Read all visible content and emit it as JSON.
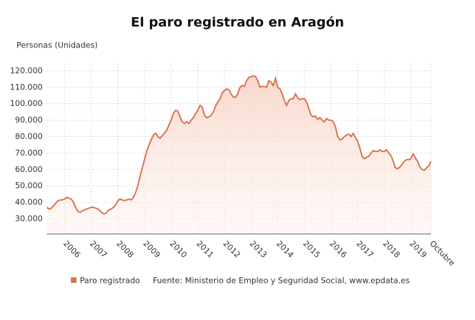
{
  "chart_data": {
    "type": "line",
    "title": "El paro registrado en Aragón",
    "y_label": "Personas (Unidades)",
    "source": "Fuente: Ministerio de Empleo y Seguridad Social, www.epdata.es",
    "categories": [
      null,
      null,
      null,
      null,
      null,
      null,
      null,
      null,
      "2006",
      null,
      null,
      null,
      null,
      null,
      null,
      null,
      null,
      null,
      null,
      null,
      "2007",
      null,
      null,
      null,
      null,
      null,
      null,
      null,
      null,
      null,
      null,
      null,
      "2008",
      null,
      null,
      null,
      null,
      null,
      null,
      null,
      null,
      null,
      null,
      null,
      "2009",
      null,
      null,
      null,
      null,
      null,
      null,
      null,
      null,
      null,
      null,
      null,
      "2010",
      null,
      null,
      null,
      null,
      null,
      null,
      null,
      null,
      null,
      null,
      null,
      "2011",
      null,
      null,
      null,
      null,
      null,
      null,
      null,
      null,
      null,
      null,
      null,
      "2012",
      null,
      null,
      null,
      null,
      null,
      null,
      null,
      null,
      null,
      null,
      null,
      "2013",
      null,
      null,
      null,
      null,
      null,
      null,
      null,
      null,
      null,
      null,
      null,
      "2014",
      null,
      null,
      null,
      null,
      null,
      null,
      null,
      null,
      null,
      null,
      null,
      "2015",
      null,
      null,
      null,
      null,
      null,
      null,
      null,
      null,
      null,
      null,
      null,
      "2016",
      null,
      null,
      null,
      null,
      null,
      null,
      null,
      null,
      null,
      null,
      null,
      "2017",
      null,
      null,
      null,
      null,
      null,
      null,
      null,
      null,
      null,
      null,
      null,
      "2018",
      null,
      null,
      null,
      null,
      null,
      null,
      null,
      null,
      null,
      null,
      null,
      "2019",
      null,
      null,
      null,
      null,
      null,
      null,
      null,
      null,
      "Octubre"
    ],
    "series": [
      {
        "name": "Paro registrado",
        "color": "#d9714a",
        "values": [
          37000,
          36000,
          36500,
          38000,
          39500,
          41000,
          41500,
          41500,
          42000,
          43000,
          42500,
          42000,
          40000,
          37000,
          34500,
          34000,
          35000,
          35500,
          36000,
          36500,
          37000,
          37000,
          36500,
          36000,
          35000,
          33500,
          33000,
          34000,
          35500,
          36000,
          37000,
          38500,
          41000,
          42000,
          41500,
          41000,
          41500,
          42000,
          41500,
          43000,
          46000,
          50000,
          56000,
          61000,
          66000,
          71000,
          75000,
          78000,
          81000,
          82000,
          80000,
          79000,
          80500,
          82000,
          84000,
          87000,
          90000,
          94000,
          96000,
          95500,
          92000,
          89000,
          88000,
          89000,
          88000,
          90000,
          91500,
          94000,
          96000,
          99000,
          98000,
          93000,
          91500,
          92000,
          93000,
          95000,
          98500,
          101000,
          103000,
          106500,
          108000,
          109000,
          108500,
          106000,
          104000,
          104000,
          106000,
          110000,
          111000,
          110500,
          114000,
          116000,
          116500,
          117000,
          116500,
          114000,
          110000,
          110500,
          110500,
          110000,
          114000,
          113000,
          111000,
          115500,
          110000,
          109000,
          106000,
          102000,
          99000,
          102000,
          103000,
          103000,
          106000,
          103500,
          102500,
          103000,
          103000,
          101000,
          97000,
          93000,
          92000,
          92500,
          90500,
          91500,
          90000,
          89000,
          91000,
          90000,
          90000,
          89000,
          86000,
          80000,
          78000,
          78500,
          80000,
          81000,
          81500,
          80000,
          82000,
          79500,
          77000,
          73000,
          68000,
          66500,
          67500,
          68000,
          70000,
          71500,
          71000,
          71000,
          72000,
          71000,
          71000,
          72000,
          70000,
          68500,
          65000,
          61000,
          60500,
          61500,
          63000,
          65000,
          66000,
          66000,
          66500,
          69500,
          67000,
          65000,
          61500,
          60000,
          59500,
          61000,
          62000,
          65000
        ]
      }
    ],
    "ylim": [
      20800,
      125400
    ],
    "yticks": [
      {
        "value": 30000,
        "label": "30.000"
      },
      {
        "value": 40000,
        "label": "40.000"
      },
      {
        "value": 50000,
        "label": "50.000"
      },
      {
        "value": 60000,
        "label": "60.000"
      },
      {
        "value": 70000,
        "label": "70.000"
      },
      {
        "value": 80000,
        "label": "80.000"
      },
      {
        "value": 90000,
        "label": "90.000"
      },
      {
        "value": 100000,
        "label": "100.000"
      },
      {
        "value": 110000,
        "label": "110.000"
      },
      {
        "value": 120000,
        "label": "120.000"
      }
    ],
    "grid": true
  }
}
